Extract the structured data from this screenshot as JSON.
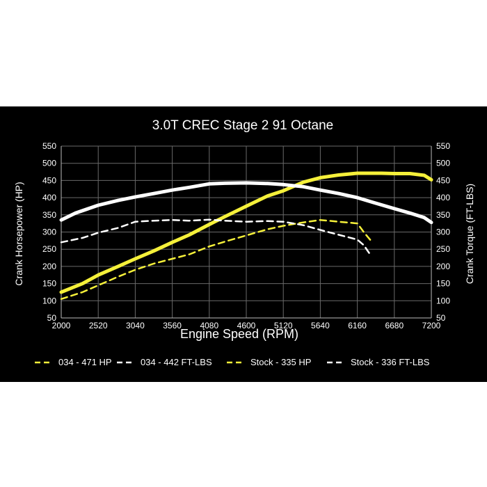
{
  "chart_data": {
    "type": "line",
    "title": "3.0T CREC Stage 2 91 Octane",
    "xlabel": "Engine Speed (RPM)",
    "ylabel_left": "Crank Horsepower (HP)",
    "ylabel_right": "Crank Torque (FT-LBS)",
    "xlim": [
      2000,
      7200
    ],
    "xticks": [
      2000,
      2520,
      3040,
      3560,
      4080,
      4600,
      5120,
      5640,
      6160,
      6680,
      7200
    ],
    "ylim": [
      50,
      550
    ],
    "yticks": [
      50,
      100,
      150,
      200,
      250,
      300,
      350,
      400,
      450,
      500,
      550
    ],
    "grid": true,
    "legend_position": "bottom",
    "series": [
      {
        "name": "034 - 471 HP",
        "color": "#f5f03a",
        "dash": "solid",
        "axis": "left",
        "points": [
          [
            2000,
            125
          ],
          [
            2300,
            150
          ],
          [
            2520,
            175
          ],
          [
            2800,
            200
          ],
          [
            3040,
            222
          ],
          [
            3300,
            245
          ],
          [
            3560,
            270
          ],
          [
            3800,
            292
          ],
          [
            4080,
            322
          ],
          [
            4300,
            345
          ],
          [
            4600,
            375
          ],
          [
            4900,
            405
          ],
          [
            5120,
            420
          ],
          [
            5400,
            445
          ],
          [
            5640,
            458
          ],
          [
            5900,
            466
          ],
          [
            6160,
            471
          ],
          [
            6500,
            471
          ],
          [
            6680,
            470
          ],
          [
            6900,
            470
          ],
          [
            7100,
            465
          ],
          [
            7200,
            452
          ]
        ]
      },
      {
        "name": "034 - 442 FT-LBS",
        "color": "#ffffff",
        "dash": "solid",
        "axis": "right",
        "points": [
          [
            2000,
            335
          ],
          [
            2200,
            355
          ],
          [
            2520,
            378
          ],
          [
            2800,
            392
          ],
          [
            3040,
            402
          ],
          [
            3300,
            412
          ],
          [
            3560,
            422
          ],
          [
            3800,
            430
          ],
          [
            4080,
            440
          ],
          [
            4300,
            442
          ],
          [
            4600,
            443
          ],
          [
            4900,
            441
          ],
          [
            5120,
            438
          ],
          [
            5400,
            432
          ],
          [
            5640,
            422
          ],
          [
            5900,
            412
          ],
          [
            6160,
            400
          ],
          [
            6400,
            385
          ],
          [
            6680,
            368
          ],
          [
            6900,
            355
          ],
          [
            7100,
            342
          ],
          [
            7200,
            328
          ]
        ]
      },
      {
        "name": "Stock - 335 HP",
        "color": "#f5f03a",
        "dash": "dashed",
        "axis": "left",
        "points": [
          [
            2000,
            105
          ],
          [
            2300,
            125
          ],
          [
            2520,
            145
          ],
          [
            2800,
            170
          ],
          [
            3040,
            190
          ],
          [
            3300,
            208
          ],
          [
            3560,
            222
          ],
          [
            3800,
            235
          ],
          [
            4080,
            258
          ],
          [
            4300,
            272
          ],
          [
            4600,
            290
          ],
          [
            4900,
            308
          ],
          [
            5120,
            318
          ],
          [
            5400,
            328
          ],
          [
            5640,
            335
          ],
          [
            5900,
            330
          ],
          [
            6160,
            325
          ],
          [
            6250,
            300
          ],
          [
            6350,
            275
          ]
        ]
      },
      {
        "name": "Stock - 336 FT-LBS",
        "color": "#ffffff",
        "dash": "dashed",
        "axis": "right",
        "points": [
          [
            2000,
            270
          ],
          [
            2300,
            283
          ],
          [
            2520,
            298
          ],
          [
            2800,
            312
          ],
          [
            3040,
            330
          ],
          [
            3300,
            333
          ],
          [
            3560,
            335
          ],
          [
            3800,
            333
          ],
          [
            4080,
            336
          ],
          [
            4300,
            333
          ],
          [
            4600,
            330
          ],
          [
            4900,
            332
          ],
          [
            5120,
            330
          ],
          [
            5400,
            320
          ],
          [
            5640,
            306
          ],
          [
            5900,
            292
          ],
          [
            6160,
            278
          ],
          [
            6250,
            262
          ],
          [
            6350,
            232
          ]
        ]
      }
    ]
  }
}
